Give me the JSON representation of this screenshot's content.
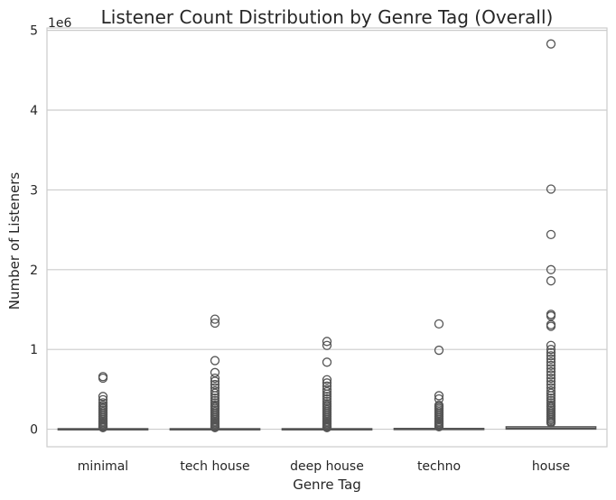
{
  "chart_data": {
    "type": "box",
    "title": "Listener Count Distribution by Genre Tag (Overall)",
    "xlabel": "Genre Tag",
    "ylabel": "Number of Listeners",
    "y_scale_label": "1e6",
    "ylim": [
      -0.22,
      5.03
    ],
    "y_ticks": [
      0,
      1,
      2,
      3,
      4,
      5
    ],
    "y_tick_labels": [
      "0",
      "1",
      "2",
      "3",
      "4",
      "5"
    ],
    "grid": "horizontal",
    "colors": {
      "box_edge": "#555555",
      "grid": "#cccccc",
      "frame": "#cccccc",
      "text": "#262626"
    },
    "categories": [
      "minimal",
      "tech house",
      "deep house",
      "techno",
      "house"
    ],
    "boxes": [
      {
        "category": "minimal",
        "q1": 0.0,
        "median": 0.002,
        "q3": 0.006,
        "whisker_low": 0.0,
        "whisker_high": 0.014,
        "outliers": [
          0.66,
          0.64,
          0.41,
          0.37,
          0.33,
          0.3,
          0.28,
          0.26,
          0.24,
          0.22,
          0.2,
          0.18,
          0.16,
          0.14,
          0.12,
          0.1,
          0.085,
          0.07,
          0.055,
          0.04,
          0.03,
          0.02
        ]
      },
      {
        "category": "tech house",
        "q1": 0.0,
        "median": 0.002,
        "q3": 0.006,
        "whisker_low": 0.0,
        "whisker_high": 0.014,
        "outliers": [
          1.38,
          1.33,
          0.86,
          0.71,
          0.64,
          0.6,
          0.56,
          0.52,
          0.48,
          0.45,
          0.42,
          0.39,
          0.36,
          0.33,
          0.3,
          0.28,
          0.26,
          0.24,
          0.22,
          0.2,
          0.18,
          0.16,
          0.14,
          0.12,
          0.1,
          0.085,
          0.07,
          0.055,
          0.04,
          0.03,
          0.02
        ]
      },
      {
        "category": "deep house",
        "q1": 0.0,
        "median": 0.002,
        "q3": 0.006,
        "whisker_low": 0.0,
        "whisker_high": 0.014,
        "outliers": [
          1.1,
          1.05,
          0.84,
          0.62,
          0.58,
          0.54,
          0.5,
          0.47,
          0.44,
          0.41,
          0.38,
          0.35,
          0.32,
          0.3,
          0.28,
          0.26,
          0.24,
          0.22,
          0.2,
          0.18,
          0.16,
          0.14,
          0.12,
          0.1,
          0.085,
          0.07,
          0.055,
          0.04,
          0.03,
          0.02
        ]
      },
      {
        "category": "techno",
        "q1": 0.0,
        "median": 0.003,
        "q3": 0.009,
        "whisker_low": 0.0,
        "whisker_high": 0.022,
        "outliers": [
          1.32,
          0.99,
          0.42,
          0.38,
          0.3,
          0.28,
          0.26,
          0.24,
          0.22,
          0.2,
          0.18,
          0.16,
          0.14,
          0.12,
          0.1,
          0.085,
          0.07,
          0.055,
          0.04,
          0.03
        ]
      },
      {
        "category": "house",
        "q1": 0.002,
        "median": 0.01,
        "q3": 0.03,
        "whisker_low": 0.0,
        "whisker_high": 0.072,
        "outliers": [
          4.83,
          3.01,
          2.44,
          2.0,
          1.86,
          1.44,
          1.42,
          1.31,
          1.29,
          1.05,
          1.0,
          0.96,
          0.92,
          0.88,
          0.84,
          0.8,
          0.76,
          0.72,
          0.68,
          0.64,
          0.6,
          0.56,
          0.52,
          0.48,
          0.45,
          0.42,
          0.39,
          0.36,
          0.33,
          0.3,
          0.28,
          0.26,
          0.24,
          0.22,
          0.2,
          0.18,
          0.16,
          0.14,
          0.12,
          0.1,
          0.09,
          0.08
        ]
      }
    ]
  }
}
